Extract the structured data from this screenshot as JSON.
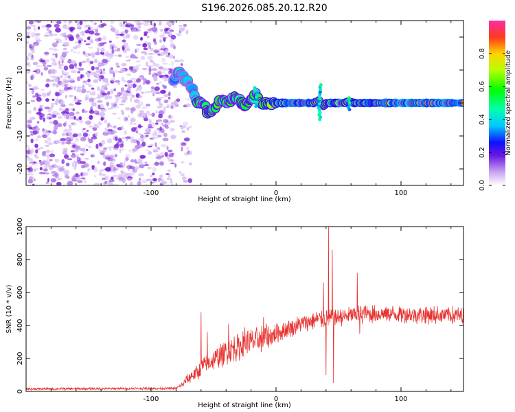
{
  "title": "S196.2026.085.20.12.R20",
  "colors": {
    "snr_line": "#e8322f",
    "speckle_light": "#d9c3f5",
    "speckle_mid": "#b788ea",
    "speckle_dark": "#7a22d8"
  },
  "chart_data": [
    {
      "id": "spectrogram",
      "type": "heatmap",
      "xlabel": "Height of straight line (km)",
      "ylabel": "Frequency (Hz)",
      "xlim": [
        -200,
        150
      ],
      "ylim": [
        -25,
        25
      ],
      "xticks": [
        -100,
        0,
        100
      ],
      "yticks": [
        20,
        10,
        0,
        -10,
        -20
      ],
      "noise_region_end_km": -82,
      "ridge": {
        "x": [
          -82,
          -79,
          -76,
          -73,
          -70,
          -67,
          -64,
          -60,
          -57,
          -54,
          -50,
          -46,
          -42,
          -39,
          -36,
          -33,
          -30,
          -26,
          -22,
          -19,
          -16,
          -13,
          -10,
          -6,
          -2,
          0,
          10,
          20,
          30,
          35,
          38,
          40,
          45,
          55,
          58,
          62,
          70,
          90,
          150
        ],
        "y": [
          7,
          9,
          9,
          7,
          6,
          4,
          1,
          0,
          -1,
          -3,
          -2,
          0,
          1,
          0,
          1,
          2,
          1,
          -1,
          0,
          1,
          3,
          1,
          0,
          0,
          0,
          0,
          0,
          0,
          0,
          1,
          -1,
          0,
          0,
          0,
          0.5,
          0,
          0,
          0,
          0
        ],
        "amp": [
          0.3,
          0.4,
          0.45,
          0.4,
          0.35,
          0.4,
          0.5,
          0.55,
          0.6,
          0.65,
          0.6,
          0.55,
          0.5,
          0.55,
          0.6,
          0.55,
          0.55,
          0.6,
          0.6,
          0.55,
          0.5,
          0.6,
          0.7,
          0.8,
          0.9,
          0.9,
          0.9,
          0.9,
          0.85,
          0.6,
          0.5,
          0.7,
          0.95,
          0.95,
          0.6,
          0.9,
          0.9,
          0.95,
          0.95
        ]
      },
      "colorbar": {
        "label": "Normalized spectral amplitude",
        "ticks": [
          "0.0",
          "0.2",
          "0.4",
          "0.6",
          "0.8"
        ],
        "tick_values": [
          0.0,
          0.2,
          0.4,
          0.6,
          0.8
        ],
        "range": [
          0.0,
          1.0
        ]
      }
    },
    {
      "id": "snr",
      "type": "line",
      "xlabel": "Height of straight line (km)",
      "ylabel": "SNR (10 * v/v)",
      "xlim": [
        -200,
        150
      ],
      "ylim": [
        0,
        1000
      ],
      "xticks": [
        -100,
        0,
        100
      ],
      "yticks": [
        0,
        200,
        400,
        600,
        800,
        1000
      ],
      "envelope": {
        "x": [
          -200,
          -80,
          -75,
          -70,
          -65,
          -62,
          -60,
          -55,
          -50,
          -45,
          -40,
          -35,
          -30,
          -25,
          -20,
          -15,
          -10,
          -5,
          0,
          10,
          20,
          30,
          40,
          50,
          60,
          70,
          80,
          100,
          120,
          150
        ],
        "mean": [
          15,
          18,
          40,
          80,
          110,
          120,
          150,
          170,
          190,
          210,
          240,
          260,
          270,
          290,
          300,
          310,
          320,
          330,
          350,
          380,
          410,
          430,
          440,
          450,
          460,
          470,
          470,
          470,
          465,
          460
        ],
        "amp": [
          8,
          8,
          20,
          40,
          50,
          60,
          60,
          60,
          70,
          80,
          80,
          90,
          90,
          90,
          90,
          90,
          90,
          80,
          70,
          60,
          60,
          60,
          60,
          60,
          60,
          60,
          60,
          60,
          60,
          60
        ]
      },
      "spikes": [
        {
          "x": -60,
          "y": 480
        },
        {
          "x": -55,
          "y": 360
        },
        {
          "x": -38,
          "y": 410
        },
        {
          "x": -25,
          "y": 390
        },
        {
          "x": -10,
          "y": 450
        },
        {
          "x": 38,
          "y": 660
        },
        {
          "x": 40,
          "y": 100
        },
        {
          "x": 42,
          "y": 1000
        },
        {
          "x": 45,
          "y": 860
        },
        {
          "x": 46,
          "y": 50
        },
        {
          "x": 65,
          "y": 720
        },
        {
          "x": 67,
          "y": 350
        }
      ]
    }
  ]
}
